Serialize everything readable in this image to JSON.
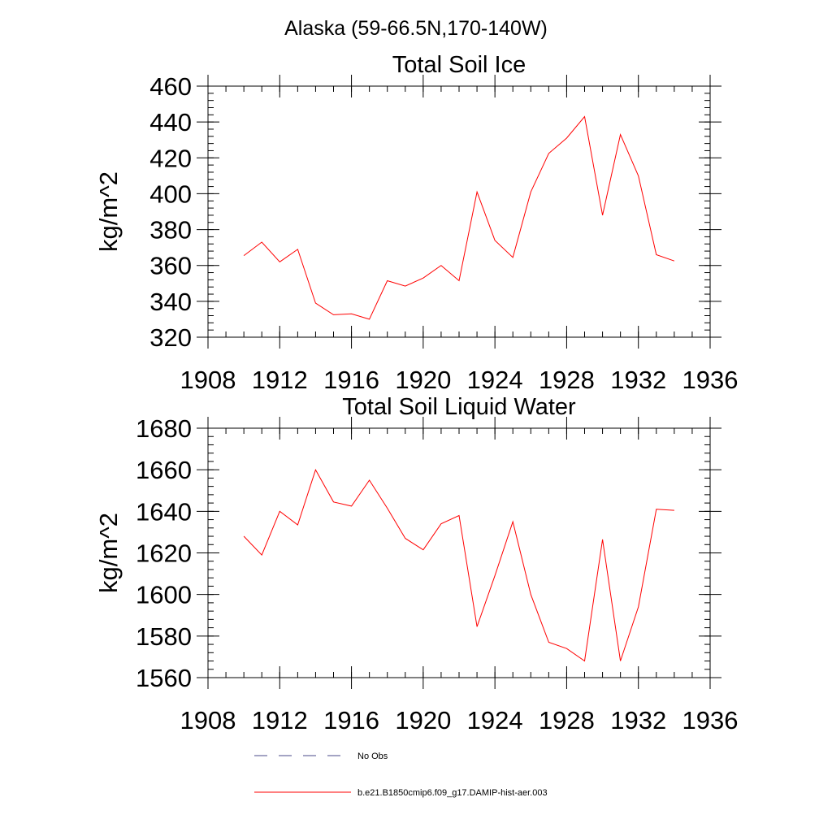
{
  "figure": {
    "title": "Alaska (59-66.5N,170-140W)"
  },
  "chart_data": [
    {
      "type": "line",
      "title": "Total Soil Ice",
      "xlabel": "",
      "ylabel": "kg/m^2",
      "xlim": [
        1908,
        1936
      ],
      "ylim": [
        320,
        460
      ],
      "xticks": [
        1908,
        1912,
        1916,
        1920,
        1924,
        1928,
        1932,
        1936
      ],
      "yticks": [
        320,
        340,
        360,
        380,
        400,
        420,
        440,
        460
      ],
      "grid": false,
      "series": [
        {
          "name": "b.e21.B1850cmip6.f09_g17.DAMIP-hist-aer.003",
          "color": "#ff0000",
          "x": [
            1910,
            1911,
            1912,
            1913,
            1914,
            1915,
            1916,
            1917,
            1918,
            1919,
            1920,
            1921,
            1922,
            1923,
            1924,
            1925,
            1926,
            1927,
            1928,
            1929,
            1930,
            1931,
            1932,
            1933,
            1934
          ],
          "y": [
            365.5,
            373,
            362,
            369,
            339,
            332.5,
            333,
            330,
            351.5,
            348.5,
            353,
            360,
            351.5,
            401,
            374,
            364.5,
            401,
            422.5,
            431,
            443,
            388,
            433,
            410,
            366,
            362.5
          ]
        }
      ]
    },
    {
      "type": "line",
      "title": "Total Soil Liquid Water",
      "xlabel": "",
      "ylabel": "kg/m^2",
      "xlim": [
        1908,
        1936
      ],
      "ylim": [
        1560,
        1680
      ],
      "xticks": [
        1908,
        1912,
        1916,
        1920,
        1924,
        1928,
        1932,
        1936
      ],
      "yticks": [
        1560,
        1580,
        1600,
        1620,
        1640,
        1660,
        1680
      ],
      "grid": false,
      "series": [
        {
          "name": "b.e21.B1850cmip6.f09_g17.DAMIP-hist-aer.003",
          "color": "#ff0000",
          "x": [
            1910,
            1911,
            1912,
            1913,
            1914,
            1915,
            1916,
            1917,
            1918,
            1919,
            1920,
            1921,
            1922,
            1923,
            1924,
            1925,
            1926,
            1927,
            1928,
            1929,
            1930,
            1931,
            1932,
            1933,
            1934
          ],
          "y": [
            1628,
            1619,
            1640,
            1633.5,
            1660,
            1644.5,
            1642.5,
            1655,
            1641.5,
            1627,
            1621.5,
            1634,
            1638,
            1584.5,
            1609,
            1635,
            1600,
            1577,
            1574,
            1568,
            1626.5,
            1568,
            1594,
            1641,
            1640.5
          ]
        }
      ]
    }
  ],
  "legend": {
    "placement": "bottom",
    "items": [
      {
        "label": "No Obs",
        "color": "#4a4a8a",
        "style": "dashed"
      },
      {
        "label": "b.e21.B1850cmip6.f09_g17.DAMIP-hist-aer.003",
        "color": "#ff0000",
        "style": "solid"
      }
    ]
  }
}
